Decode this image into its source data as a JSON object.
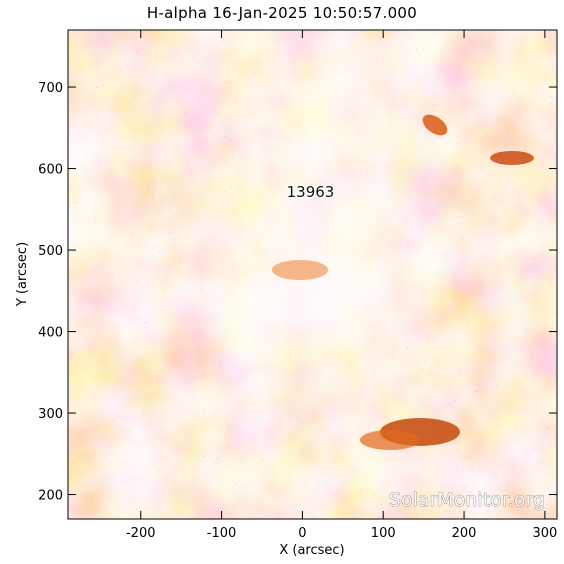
{
  "title": "H-alpha 16-Jan-2025 10:50:57.000",
  "region_label": "13963",
  "watermark": "SolarMonitor.org",
  "colors": {
    "background": "#ffffff",
    "pale": "#fbe6d6",
    "light": "#f5c8a6",
    "mid": "#f0a060",
    "orange": "#ec7a22",
    "dark_orange": "#c8500e",
    "black_speckle": "#2a1608"
  },
  "chart_data": {
    "type": "heatmap",
    "title": "H-alpha 16-Jan-2025 10:50:57.000",
    "xlabel": "X (arcsec)",
    "ylabel": "Y (arcsec)",
    "xlim": [
      -290,
      315
    ],
    "ylim": [
      170,
      770
    ],
    "x_ticks": [
      -200,
      -100,
      0,
      100,
      200,
      300
    ],
    "y_ticks": [
      200,
      300,
      400,
      500,
      600,
      700
    ],
    "annotations": [
      {
        "text": "13963",
        "x": 10,
        "y": 565
      }
    ]
  }
}
